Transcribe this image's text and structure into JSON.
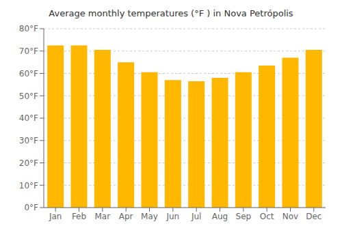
{
  "chart_data": {
    "type": "bar",
    "title": "Average monthly temperatures (°F ) in Nova Petrópolis",
    "categories": [
      "Jan",
      "Feb",
      "Mar",
      "Apr",
      "May",
      "Jun",
      "Jul",
      "Aug",
      "Sep",
      "Oct",
      "Nov",
      "Dec"
    ],
    "values": [
      72.5,
      72.5,
      70.5,
      65.0,
      60.5,
      57.0,
      56.5,
      58.0,
      60.5,
      63.5,
      67.0,
      70.5
    ],
    "color": "#FFB700",
    "ylim": [
      0,
      80
    ],
    "yticks": [
      {
        "value": 0,
        "label": "0°F"
      },
      {
        "value": 10,
        "label": "10°F"
      },
      {
        "value": 20,
        "label": "20°F"
      },
      {
        "value": 30,
        "label": "30°F"
      },
      {
        "value": 40,
        "label": "40°F"
      },
      {
        "value": 50,
        "label": "50°F"
      },
      {
        "value": 60,
        "label": "60°F"
      },
      {
        "value": 70,
        "label": "70°F"
      },
      {
        "value": 80,
        "label": "80°F"
      }
    ],
    "grid": true
  }
}
